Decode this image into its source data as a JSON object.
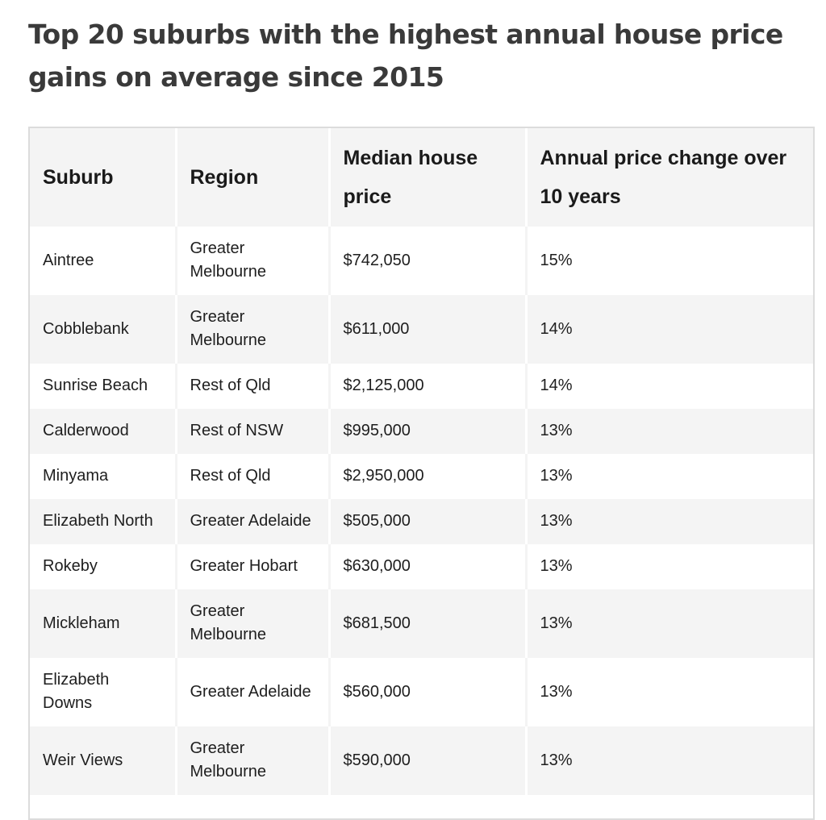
{
  "title": "Top 20 suburbs with the highest annual house price gains on average since 2015",
  "table": {
    "headers": [
      "Suburb",
      "Region",
      "Median house price",
      "Annual price change over 10 years"
    ],
    "rows": [
      [
        "Aintree",
        "Greater Melbourne",
        "$742,050",
        "15%"
      ],
      [
        "Cobblebank",
        "Greater Melbourne",
        "$611,000",
        "14%"
      ],
      [
        "Sunrise Beach",
        "Rest of Qld",
        "$2,125,000",
        "14%"
      ],
      [
        "Calderwood",
        "Rest of NSW",
        "$995,000",
        "13%"
      ],
      [
        "Minyama",
        "Rest of Qld",
        "$2,950,000",
        "13%"
      ],
      [
        "Elizabeth North",
        "Greater Adelaide",
        "$505,000",
        "13%"
      ],
      [
        "Rokeby",
        "Greater Hobart",
        "$630,000",
        "13%"
      ],
      [
        "Mickleham",
        "Greater Melbourne",
        "$681,500",
        "13%"
      ],
      [
        "Elizabeth Downs",
        "Greater Adelaide",
        "$560,000",
        "13%"
      ],
      [
        "Weir Views",
        "Greater Melbourne",
        "$590,000",
        "13%"
      ]
    ]
  }
}
